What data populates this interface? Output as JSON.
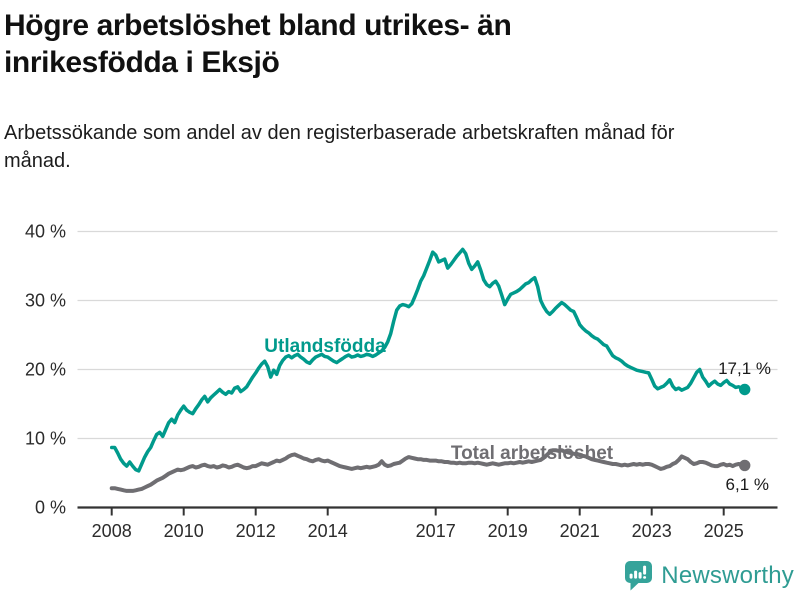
{
  "title": "Högre arbetslöshet bland utrikes- än inrikesfödda i Eksjö",
  "subtitle": "Arbetssökande som andel av den registerbaserade arbetskraften månad för månad.",
  "branding": {
    "logo_text": "Newsworthy",
    "logo_icon": "newsworthy-chart-bubble-icon"
  },
  "colors": {
    "foreign_born_line": "#009a8c",
    "total_line": "#6f6e72",
    "grid_line": "#d9d9d9",
    "axis_line": "#333333",
    "tick_text": "#2b2b2b",
    "value_text": "#1a1a1a",
    "brand_teal": "#35a39a"
  },
  "chart_data": {
    "type": "line",
    "unit": "%",
    "x_start": "2008-01",
    "x_end": "2025-08",
    "frequency": "monthly",
    "x_ticks": [
      2008,
      2010,
      2012,
      2014,
      2017,
      2019,
      2021,
      2023,
      2025
    ],
    "y_ticks": [
      40,
      30,
      20,
      10,
      0
    ],
    "y_tick_suffix": " %",
    "ylim": [
      0,
      42
    ],
    "grid": true,
    "series": [
      {
        "name": "Utlandsfödda",
        "color": "#009a8c",
        "end_label": "17,1 %",
        "end_value": 17.1,
        "values": [
          8.7,
          8.7,
          7.9,
          7.0,
          6.4,
          6.0,
          6.6,
          6.0,
          5.5,
          5.3,
          6.3,
          7.3,
          8.1,
          8.7,
          9.7,
          10.6,
          10.9,
          10.3,
          11.3,
          12.3,
          12.8,
          12.3,
          13.4,
          14.1,
          14.7,
          14.1,
          13.8,
          13.6,
          14.3,
          14.9,
          15.6,
          16.1,
          15.3,
          15.9,
          16.3,
          16.7,
          17.1,
          16.7,
          16.4,
          16.8,
          16.6,
          17.3,
          17.5,
          16.8,
          17.1,
          17.5,
          18.2,
          18.9,
          19.5,
          20.2,
          20.8,
          21.2,
          20.4,
          18.9,
          19.9,
          19.3,
          20.6,
          21.3,
          21.8,
          22.0,
          21.7,
          22.0,
          22.2,
          21.8,
          21.5,
          21.1,
          20.9,
          21.4,
          21.8,
          22.0,
          22.2,
          21.9,
          21.8,
          21.5,
          21.2,
          21.0,
          21.3,
          21.6,
          21.9,
          22.1,
          21.8,
          21.9,
          22.1,
          21.9,
          22.0,
          22.2,
          22.1,
          21.9,
          22.1,
          22.4,
          22.7,
          23.2,
          24.0,
          25.2,
          27.0,
          28.6,
          29.2,
          29.4,
          29.3,
          29.1,
          29.5,
          30.5,
          31.6,
          32.8,
          33.6,
          34.7,
          35.8,
          37.0,
          36.6,
          35.6,
          35.8,
          36.0,
          34.7,
          35.2,
          35.8,
          36.4,
          36.9,
          37.4,
          36.8,
          35.4,
          34.5,
          35.0,
          35.6,
          34.4,
          33.0,
          32.3,
          32.0,
          32.5,
          32.8,
          32.1,
          30.8,
          29.4,
          30.2,
          30.9,
          31.1,
          31.3,
          31.6,
          32.0,
          32.4,
          32.6,
          33.0,
          33.3,
          32.0,
          30.0,
          29.1,
          28.4,
          28.0,
          28.4,
          28.9,
          29.3,
          29.7,
          29.4,
          29.0,
          28.6,
          28.4,
          27.5,
          26.5,
          26.0,
          25.6,
          25.3,
          24.9,
          24.6,
          24.4,
          24.0,
          23.6,
          23.4,
          22.7,
          22.0,
          21.7,
          21.5,
          21.2,
          20.8,
          20.5,
          20.3,
          20.1,
          19.9,
          19.8,
          19.7,
          19.6,
          19.5,
          18.6,
          17.6,
          17.2,
          17.4,
          17.6,
          18.0,
          18.5,
          17.6,
          17.1,
          17.3,
          17.0,
          17.2,
          17.4,
          18.0,
          18.8,
          19.6,
          20.0,
          18.9,
          18.3,
          17.6,
          18.0,
          18.3,
          17.9,
          17.7,
          18.1,
          18.4,
          17.9,
          17.7,
          17.4,
          17.5,
          17.3,
          17.1
        ]
      },
      {
        "name": "Total arbetslöshet",
        "color": "#6f6e72",
        "end_label": "6,1 %",
        "end_value": 6.1,
        "values": [
          2.8,
          2.8,
          2.7,
          2.6,
          2.5,
          2.4,
          2.4,
          2.4,
          2.5,
          2.6,
          2.7,
          2.9,
          3.1,
          3.3,
          3.6,
          3.9,
          4.1,
          4.3,
          4.6,
          4.9,
          5.1,
          5.3,
          5.5,
          5.4,
          5.5,
          5.7,
          5.9,
          6.0,
          5.8,
          5.9,
          6.1,
          6.2,
          6.0,
          5.9,
          6.0,
          5.8,
          5.9,
          6.1,
          6.0,
          5.8,
          5.9,
          6.1,
          6.2,
          6.0,
          5.8,
          5.7,
          5.8,
          6.0,
          6.0,
          6.2,
          6.4,
          6.3,
          6.2,
          6.4,
          6.6,
          6.8,
          6.7,
          6.9,
          7.1,
          7.4,
          7.6,
          7.7,
          7.5,
          7.3,
          7.1,
          7.0,
          6.8,
          6.7,
          6.9,
          7.0,
          6.8,
          6.7,
          6.8,
          6.6,
          6.4,
          6.2,
          6.0,
          5.9,
          5.8,
          5.7,
          5.6,
          5.7,
          5.8,
          5.7,
          5.8,
          5.9,
          5.8,
          5.9,
          6.0,
          6.2,
          6.7,
          6.2,
          6.0,
          6.1,
          6.3,
          6.4,
          6.5,
          6.8,
          7.1,
          7.3,
          7.2,
          7.1,
          7.0,
          7.0,
          6.9,
          6.9,
          6.8,
          6.8,
          6.8,
          6.7,
          6.7,
          6.6,
          6.6,
          6.5,
          6.5,
          6.4,
          6.5,
          6.4,
          6.4,
          6.5,
          6.5,
          6.4,
          6.5,
          6.4,
          6.3,
          6.2,
          6.3,
          6.4,
          6.3,
          6.2,
          6.3,
          6.4,
          6.4,
          6.5,
          6.4,
          6.5,
          6.6,
          6.5,
          6.6,
          6.7,
          6.6,
          6.7,
          6.8,
          6.9,
          7.2,
          7.6,
          8.0,
          8.3,
          8.3,
          8.2,
          8.3,
          8.1,
          8.0,
          7.9,
          7.8,
          7.7,
          7.6,
          7.5,
          7.4,
          7.2,
          7.0,
          6.9,
          6.8,
          6.7,
          6.6,
          6.5,
          6.4,
          6.3,
          6.3,
          6.2,
          6.1,
          6.2,
          6.1,
          6.2,
          6.3,
          6.2,
          6.3,
          6.2,
          6.3,
          6.3,
          6.2,
          6.0,
          5.8,
          5.6,
          5.7,
          5.9,
          6.0,
          6.3,
          6.5,
          6.9,
          7.4,
          7.2,
          7.0,
          6.6,
          6.3,
          6.4,
          6.6,
          6.6,
          6.5,
          6.3,
          6.1,
          6.0,
          6.0,
          6.2,
          6.3,
          6.1,
          6.2,
          6.0,
          6.2,
          6.3,
          6.2,
          6.1
        ]
      }
    ]
  }
}
